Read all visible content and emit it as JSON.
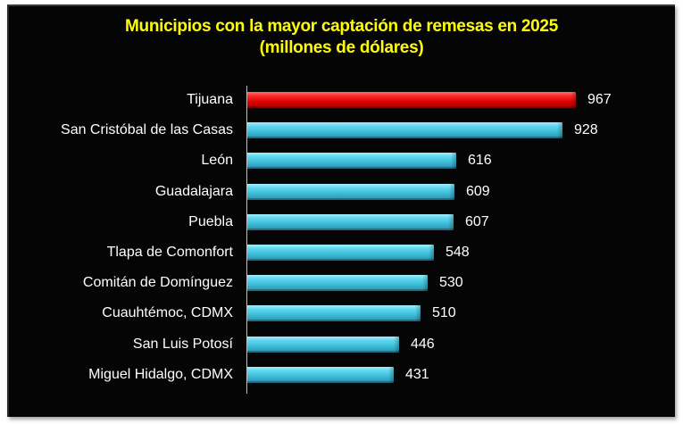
{
  "chart_data": {
    "type": "bar",
    "orientation": "horizontal",
    "title": "Municipios con la mayor captación de remesas en 2025",
    "subtitle": "(millones de dólares)",
    "xlabel": "",
    "ylabel": "",
    "categories": [
      "Tijuana",
      "San Cristóbal de las Casas",
      "León",
      "Guadalajara",
      "Puebla",
      "Tlapa de Comonfort",
      "Comitán de Domínguez",
      "Cuauhtémoc, CDMX",
      "San Luis Potosí",
      "Miguel Hidalgo, CDMX"
    ],
    "values": [
      967,
      928,
      616,
      609,
      607,
      548,
      530,
      510,
      446,
      431
    ],
    "value_labels": [
      "967",
      "928",
      "616",
      "609",
      "607",
      "548",
      "530",
      "510",
      "446",
      "431"
    ],
    "highlight_index": 0,
    "colors": {
      "highlight": "#e00000",
      "default": "#3cbcd8",
      "background": "#050505",
      "title": "#ffff00",
      "text": "#ffffff"
    },
    "grid": false,
    "legend": "none",
    "xlim": [
      0,
      1000
    ]
  }
}
